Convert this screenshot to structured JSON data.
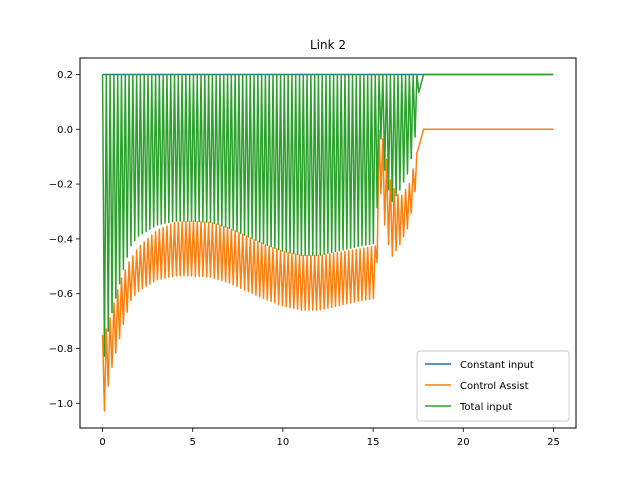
{
  "chart_data": {
    "type": "line",
    "title": "Link 2",
    "xlabel": "",
    "ylabel": "",
    "xlim": [
      -1.25,
      26.25
    ],
    "ylim": [
      -1.09,
      0.26
    ],
    "xticks": [
      0,
      5,
      10,
      15,
      20,
      25
    ],
    "xtick_labels": [
      "0",
      "5",
      "10",
      "15",
      "20",
      "25"
    ],
    "yticks": [
      -1.0,
      -0.8,
      -0.6,
      -0.4,
      -0.2,
      0.0,
      0.2
    ],
    "ytick_labels": [
      "−1.0",
      "−0.8",
      "−0.6",
      "−0.4",
      "−0.2",
      "0.0",
      "0.2"
    ],
    "grid": false,
    "legend_position": "lower-right",
    "series": [
      {
        "name": "Constant input",
        "color": "#1f77b4",
        "style": "constant",
        "x": [
          0,
          25
        ],
        "y": [
          0.2,
          0.2
        ]
      },
      {
        "name": "Control Assist",
        "color": "#ff7f0e",
        "style": "oscillating",
        "upper_envelope": {
          "x": [
            0.0,
            0.3,
            0.6,
            1.0,
            1.5,
            2.0,
            3.0,
            4.0,
            5.0,
            6.0,
            7.0,
            8.0,
            9.0,
            10.0,
            11.0,
            12.0,
            13.0,
            14.0,
            15.2,
            15.3,
            15.5,
            16.0,
            16.5,
            17.0,
            17.4,
            17.6,
            18.0,
            25.0
          ],
          "y": [
            -0.75,
            -0.72,
            -0.64,
            -0.55,
            -0.48,
            -0.43,
            -0.37,
            -0.34,
            -0.335,
            -0.34,
            -0.36,
            -0.39,
            -0.42,
            -0.445,
            -0.46,
            -0.46,
            -0.45,
            -0.44,
            -0.425,
            0.0,
            -0.02,
            -0.2,
            -0.25,
            -0.2,
            -0.1,
            0.0,
            0.0,
            0.0
          ]
        },
        "lower_envelope": {
          "x": [
            0.0,
            0.1,
            0.4,
            0.8,
            1.2,
            1.6,
            2.0,
            3.0,
            4.0,
            5.0,
            6.0,
            7.0,
            8.0,
            9.0,
            10.0,
            11.0,
            12.0,
            13.0,
            14.0,
            15.2,
            15.3,
            15.5,
            16.0,
            16.5,
            17.0,
            17.4,
            17.6,
            18.0,
            25.0
          ],
          "y": [
            -0.85,
            -1.03,
            -0.9,
            -0.8,
            -0.7,
            -0.62,
            -0.59,
            -0.55,
            -0.535,
            -0.535,
            -0.54,
            -0.56,
            -0.59,
            -0.62,
            -0.645,
            -0.66,
            -0.66,
            -0.645,
            -0.63,
            -0.615,
            -0.1,
            -0.3,
            -0.47,
            -0.42,
            -0.35,
            -0.2,
            0.0,
            0.0,
            0.0
          ]
        },
        "oscillation_period": 0.21,
        "oscillation_end": 17.6
      },
      {
        "name": "Total input",
        "color": "#2ca02c",
        "style": "oscillating",
        "upper_envelope": {
          "x": [
            0.0,
            25.0
          ],
          "y": [
            0.2,
            0.2
          ]
        },
        "lower_envelope": {
          "x": [
            0.0,
            0.1,
            0.4,
            0.8,
            1.2,
            1.6,
            2.0,
            3.0,
            4.0,
            5.0,
            6.0,
            7.0,
            8.0,
            9.0,
            10.0,
            11.0,
            12.0,
            13.0,
            14.0,
            15.2,
            15.3,
            15.5,
            16.0,
            16.5,
            17.0,
            17.4,
            17.6,
            18.0,
            25.0
          ],
          "y": [
            -0.65,
            -0.83,
            -0.7,
            -0.6,
            -0.5,
            -0.42,
            -0.39,
            -0.35,
            -0.335,
            -0.335,
            -0.34,
            -0.36,
            -0.39,
            -0.42,
            -0.445,
            -0.46,
            -0.46,
            -0.445,
            -0.43,
            -0.415,
            0.1,
            -0.1,
            -0.27,
            -0.22,
            -0.15,
            0.0,
            0.2,
            0.2,
            0.2
          ]
        },
        "oscillation_period": 0.21,
        "oscillation_end": 17.6
      }
    ]
  }
}
